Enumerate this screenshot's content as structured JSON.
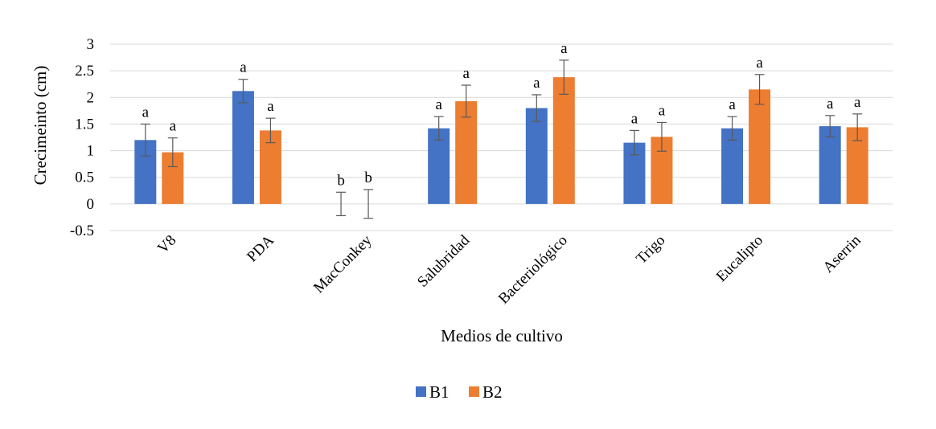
{
  "chart_data": {
    "type": "bar",
    "xlabel": "Medios de cultivo",
    "ylabel": "Crecimeinto (cm)",
    "ylim": [
      -0.5,
      3
    ],
    "yticks": [
      -0.5,
      0,
      0.5,
      1,
      1.5,
      2,
      2.5,
      3
    ],
    "ytick_labels": [
      "-0.5",
      "0",
      "0.5",
      "1",
      "1.5",
      "2",
      "2.5",
      "3"
    ],
    "grid": true,
    "legend_position": "bottom-center",
    "categories": [
      "V8",
      "PDA",
      "MacConkey",
      "Salubridad",
      "Bacteriológico",
      "Trigo",
      "Eucalipto",
      "Aserrin"
    ],
    "series": [
      {
        "name": "B1",
        "color": "#4472C4",
        "values": [
          1.2,
          2.12,
          0,
          1.42,
          1.8,
          1.15,
          1.42,
          1.46
        ],
        "errors": [
          0.3,
          0.22,
          0.22,
          0.22,
          0.25,
          0.23,
          0.22,
          0.2
        ],
        "significance": [
          "a",
          "a",
          "b",
          "a",
          "a",
          "a",
          "a",
          "a"
        ]
      },
      {
        "name": "B2",
        "color": "#ED7D31",
        "values": [
          0.97,
          1.38,
          0,
          1.93,
          2.38,
          1.26,
          2.15,
          1.44
        ],
        "errors": [
          0.27,
          0.23,
          0.27,
          0.3,
          0.32,
          0.27,
          0.28,
          0.25
        ],
        "significance": [
          "a",
          "a",
          "b",
          "a",
          "a",
          "a",
          "a",
          "a"
        ]
      }
    ]
  }
}
